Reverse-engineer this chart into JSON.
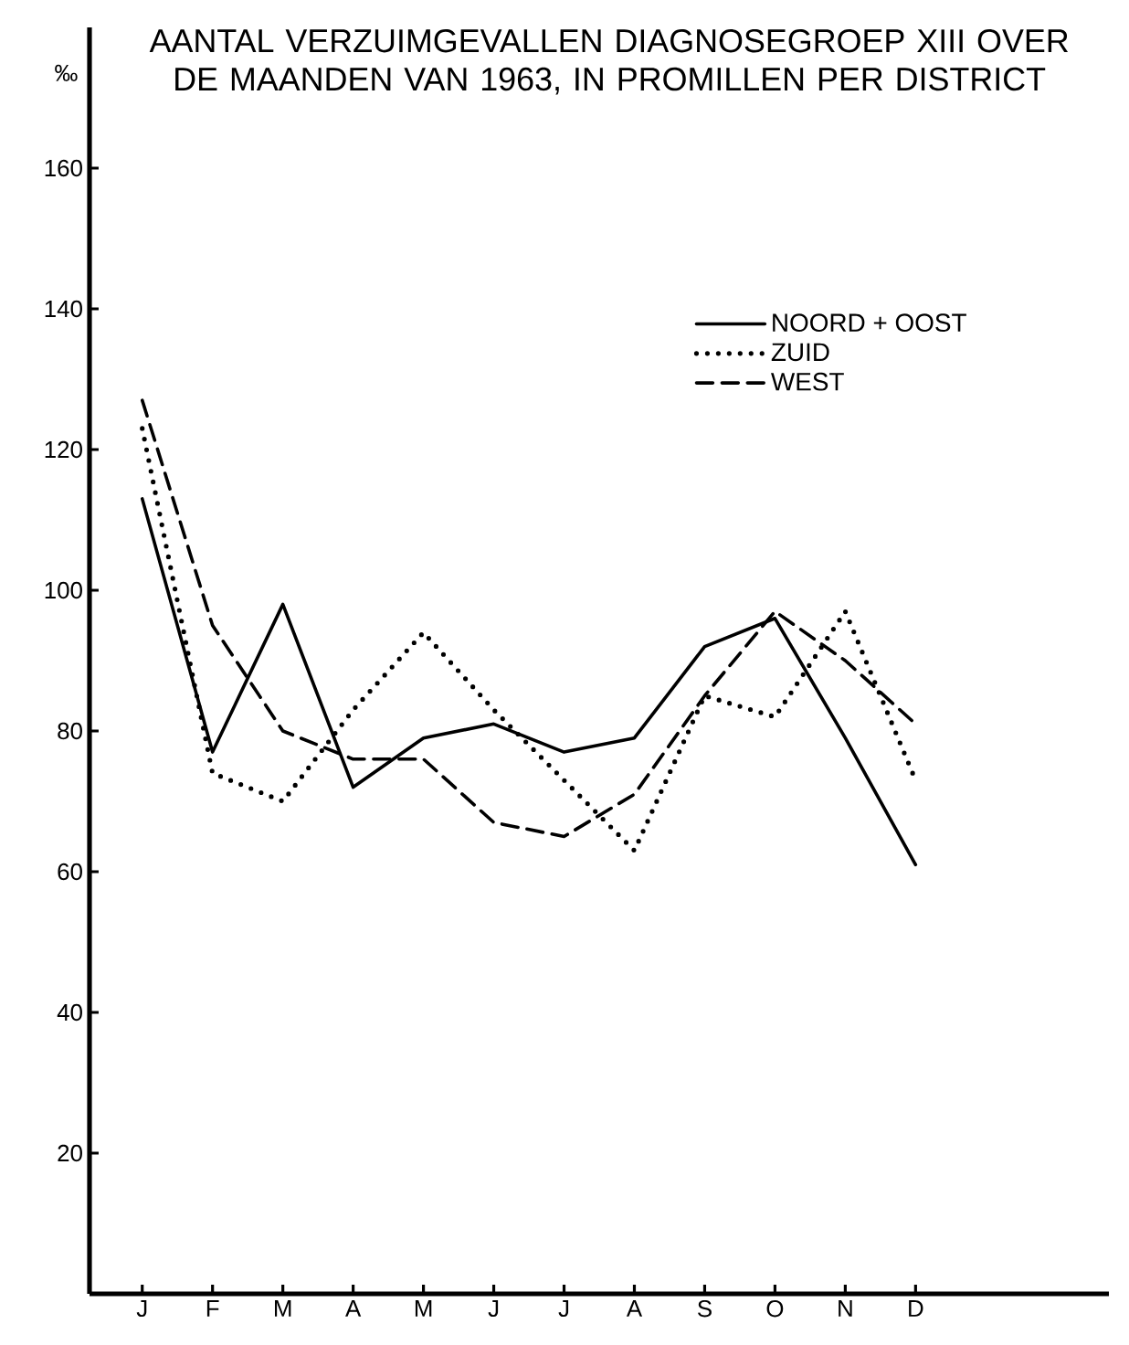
{
  "chart_data": {
    "type": "line",
    "title": "AANTAL VERZUIMGEVALLEN DIAGNOSEGROEP XIII OVER DE MAANDEN VAN 1963, IN PROMILLEN PER DISTRICT",
    "ylabel": "‰",
    "categories": [
      "J",
      "F",
      "M",
      "A",
      "M",
      "J",
      "J",
      "A",
      "S",
      "O",
      "N",
      "D"
    ],
    "series": [
      {
        "name": "NOORD + OOST",
        "color": "#000000",
        "line_style": "solid",
        "values": [
          113,
          77,
          98,
          72,
          79,
          81,
          77,
          79,
          92,
          96,
          79,
          61
        ]
      },
      {
        "name": "ZUID",
        "color": "#000000",
        "line_style": "dotted",
        "values": [
          123,
          74,
          70,
          83,
          94,
          83,
          73,
          63,
          85,
          82,
          97,
          73
        ]
      },
      {
        "name": "WEST",
        "color": "#000000",
        "line_style": "dashed",
        "values": [
          127,
          95,
          80,
          76,
          76,
          67,
          65,
          71,
          85,
          97,
          90,
          81
        ]
      }
    ],
    "ylim": [
      0,
      180
    ],
    "yticks": [
      20,
      40,
      60,
      80,
      100,
      120,
      140,
      160
    ],
    "legend": "top right"
  }
}
